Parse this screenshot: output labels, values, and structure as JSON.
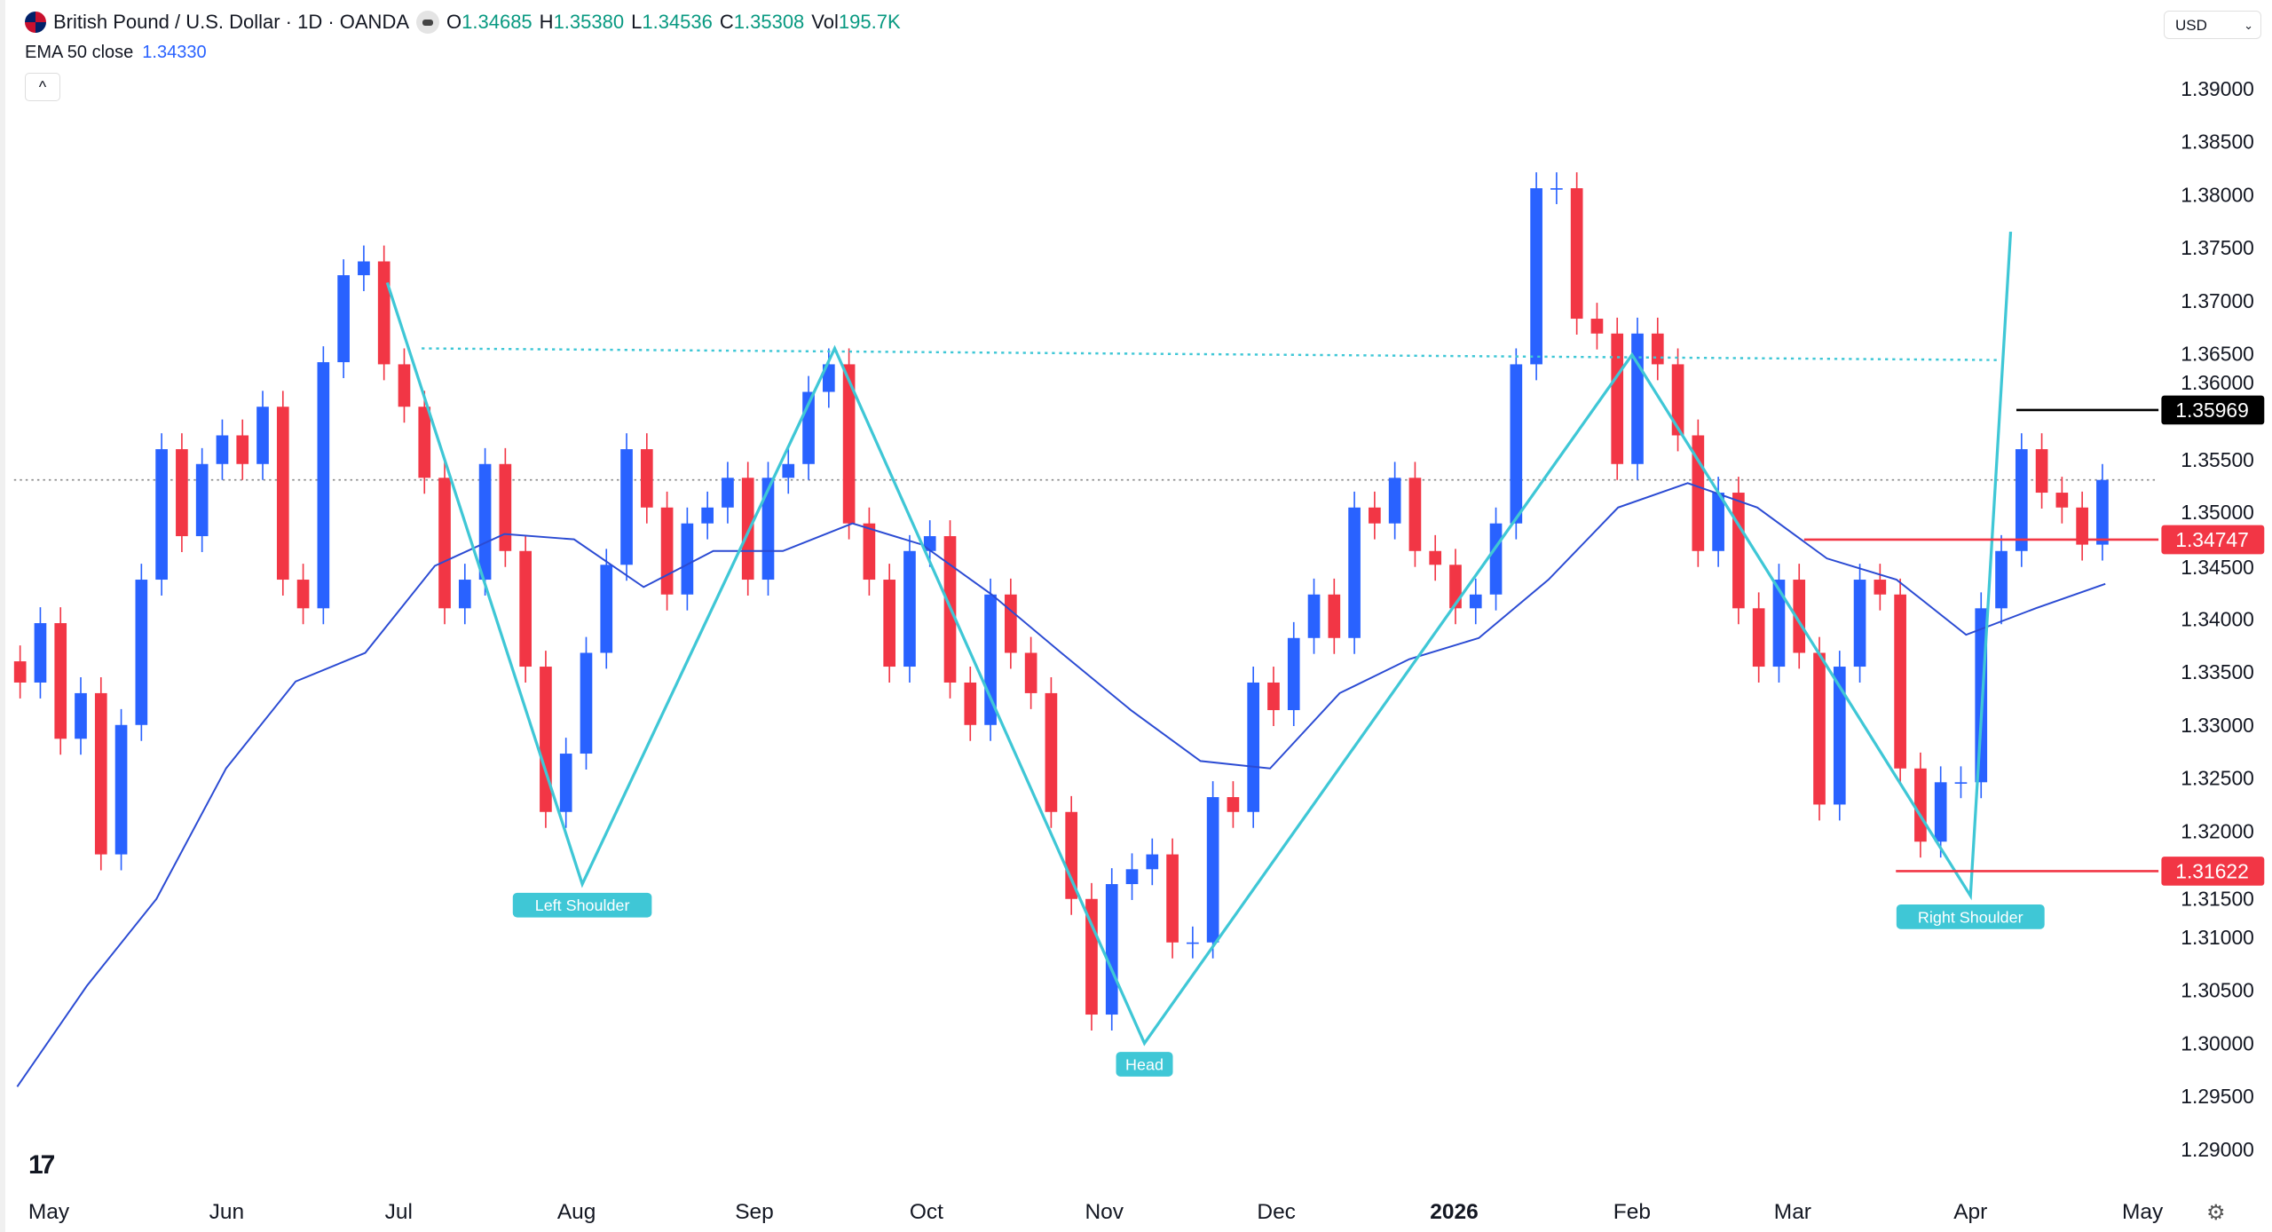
{
  "header": {
    "symbol": "British Pound / U.S. Dollar · 1D · OANDA",
    "open_label": "O",
    "open": "1.34685",
    "high_label": "H",
    "high": "1.35380",
    "low_label": "L",
    "low": "1.34536",
    "close_label": "C",
    "close": "1.35308",
    "vol_label": "Vol",
    "vol": "195.7K",
    "ema_label": "EMA 50 close",
    "ema_value": "1.34330",
    "collapse_glyph": "^",
    "currency": "USD"
  },
  "icons": {
    "flag": "gbp-usd-flag-icon",
    "currency_chevron": "chevron-down-icon",
    "logo": "tradingview-logo-icon",
    "settings": "gear-icon"
  },
  "footer": {
    "logo_text": "17",
    "settings_glyph": "⚙"
  },
  "colors": {
    "up": "#2962ff",
    "down": "#f23645",
    "pattern": "#3fc7d6",
    "ema": "#2b4bd3",
    "label_black": "#000000",
    "label_red": "#f23645"
  },
  "chart_data": {
    "type": "candlestick",
    "y_axis": {
      "min": 1.2875,
      "max": 1.3925,
      "ticks": [
        "1.39000",
        "1.38500",
        "1.38000",
        "1.37500",
        "1.37000",
        "1.36500",
        "1.36000",
        "1.35500",
        "1.35000",
        "1.34500",
        "1.34000",
        "1.33500",
        "1.33000",
        "1.32500",
        "1.32000",
        "1.31500",
        "1.31000",
        "1.30500",
        "1.30000",
        "1.29500",
        "1.29000"
      ]
    },
    "x_axis": {
      "start": "2025-04-26",
      "end": "2026-04-24",
      "ticks": [
        {
          "date": "2025-05-01",
          "label": "May"
        },
        {
          "date": "2025-06-01",
          "label": "Jun"
        },
        {
          "date": "2025-07-01",
          "label": "Jul"
        },
        {
          "date": "2025-08-01",
          "label": "Aug"
        },
        {
          "date": "2025-09-01",
          "label": "Sep"
        },
        {
          "date": "2025-10-01",
          "label": "Oct"
        },
        {
          "date": "2025-11-01",
          "label": "Nov"
        },
        {
          "date": "2025-12-01",
          "label": "Dec"
        },
        {
          "date": "2026-01-01",
          "label": "2026",
          "bold": true
        },
        {
          "date": "2026-02-01",
          "label": "Feb"
        },
        {
          "date": "2026-03-01",
          "label": "Mar"
        },
        {
          "date": "2026-04-01",
          "label": "Apr"
        },
        {
          "date": "2026-05-01",
          "label": "May"
        }
      ]
    },
    "closes": [
      1.334,
      1.3396,
      1.3287,
      1.333,
      1.3178,
      1.33,
      1.3437,
      1.356,
      1.3478,
      1.3546,
      1.3573,
      1.3546,
      1.36,
      1.3437,
      1.341,
      1.3642,
      1.3724,
      1.3737,
      1.364,
      1.36,
      1.3533,
      1.341,
      1.3437,
      1.3546,
      1.3464,
      1.3355,
      1.3218,
      1.3273,
      1.3368,
      1.3451,
      1.356,
      1.3505,
      1.3423,
      1.349,
      1.3505,
      1.3533,
      1.3437,
      1.3533,
      1.3546,
      1.3614,
      1.364,
      1.349,
      1.3437,
      1.3355,
      1.3464,
      1.3478,
      1.334,
      1.33,
      1.3423,
      1.3368,
      1.333,
      1.3218,
      1.3136,
      1.3027,
      1.315,
      1.3164,
      1.3178,
      1.3095,
      1.3095,
      1.3232,
      1.3218,
      1.334,
      1.3314,
      1.3382,
      1.3423,
      1.3382,
      1.3505,
      1.349,
      1.3533,
      1.3464,
      1.3451,
      1.341,
      1.3423,
      1.349,
      1.364,
      1.3806,
      1.3806,
      1.3683,
      1.3669,
      1.3546,
      1.3669,
      1.364,
      1.3573,
      1.3464,
      1.3519,
      1.341,
      1.3355,
      1.3437,
      1.3368,
      1.3225,
      1.3355,
      1.3437,
      1.3423,
      1.3259,
      1.319,
      1.3246,
      1.3246,
      1.341,
      1.3464,
      1.356,
      1.3519,
      1.3505,
      1.347,
      1.3531
    ],
    "ema50": [
      1.2959,
      1.3054,
      1.3136,
      1.3259,
      1.3341,
      1.3368,
      1.345,
      1.348,
      1.3475,
      1.343,
      1.3464,
      1.3464,
      1.349,
      1.347,
      1.3423,
      1.3368,
      1.3314,
      1.3266,
      1.3259,
      1.333,
      1.3362,
      1.3382,
      1.3437,
      1.3505,
      1.3528,
      1.3505,
      1.3457,
      1.3437,
      1.3385,
      1.341,
      1.3433
    ],
    "pattern": {
      "points": [
        {
          "date": "2025-06-29",
          "price": 1.3717
        },
        {
          "date": "2025-08-02",
          "price": 1.315,
          "label": "Left Shoulder"
        },
        {
          "date": "2025-09-15",
          "price": 1.3655
        },
        {
          "date": "2025-11-08",
          "price": 1.3,
          "label": "Head"
        },
        {
          "date": "2026-02-01",
          "price": 1.3649
        },
        {
          "date": "2026-04-01",
          "price": 1.3139,
          "label": "Right Shoulder"
        },
        {
          "date": "2026-04-08",
          "price": 1.3765
        }
      ],
      "neckline": [
        {
          "date": "2025-07-05",
          "price": 1.3655
        },
        {
          "date": "2026-04-06",
          "price": 1.3644
        }
      ]
    },
    "current_price_line": 1.3531,
    "levels": [
      {
        "price": 1.35969,
        "label": "1.35969",
        "from": "2026-04-09",
        "color": "#000000"
      },
      {
        "price": 1.34747,
        "label": "1.34747",
        "from": "2026-03-03",
        "color": "#f23645"
      },
      {
        "price": 1.31622,
        "label": "1.31622",
        "from": "2026-03-19",
        "color": "#f23645"
      }
    ]
  }
}
